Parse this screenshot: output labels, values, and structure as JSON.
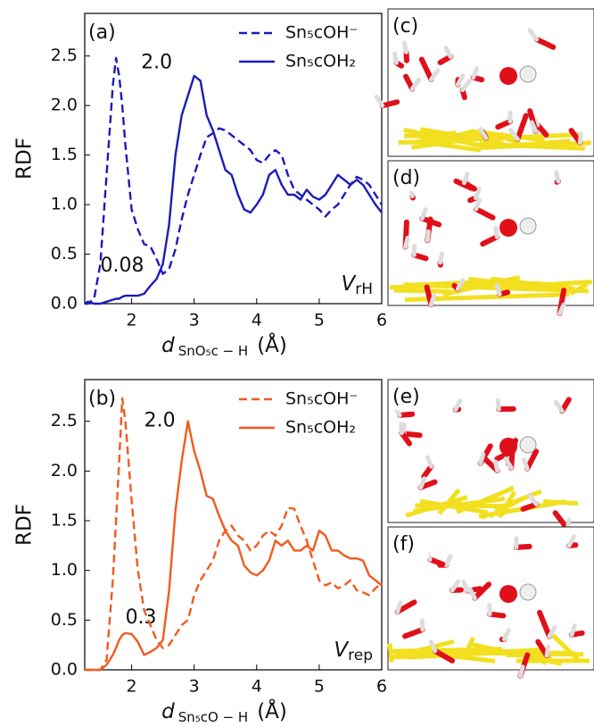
{
  "chart_data": [
    {
      "type": "line",
      "panel": "(a)",
      "ylabel": "RDF",
      "xlabel_symbol": "d",
      "xlabel_subscript": "SnO₅c − H",
      "xlabel_unit": "(Å)",
      "annotations": [
        "2.0",
        "0.08"
      ],
      "corner_label": "V",
      "corner_label_subscript": "rH",
      "legend": "upper right",
      "grid": false,
      "xlim": [
        1.25,
        6
      ],
      "xticks": [
        2,
        3,
        4,
        5,
        6
      ],
      "ylim": [
        0,
        2.93
      ],
      "yticks": [
        {
          "value": 0,
          "label": "0.0"
        },
        0.5,
        {
          "value": 1,
          "label": "1.0"
        },
        1.5,
        {
          "value": 2,
          "label": "2.0"
        },
        2.5
      ],
      "x": [
        1.25,
        1.3,
        1.4,
        1.5,
        1.6,
        1.7,
        1.75,
        1.8,
        1.85,
        1.9,
        2.0,
        2.1,
        2.2,
        2.3,
        2.4,
        2.5,
        2.6,
        2.7,
        2.8,
        2.9,
        3.0,
        3.1,
        3.2,
        3.3,
        3.4,
        3.5,
        3.6,
        3.7,
        3.8,
        3.9,
        4.0,
        4.1,
        4.2,
        4.3,
        4.4,
        4.5,
        4.6,
        4.7,
        4.8,
        4.9,
        5.0,
        5.1,
        5.2,
        5.3,
        5.4,
        5.5,
        5.6,
        5.7,
        5.8,
        5.9,
        6.0
      ],
      "series": [
        {
          "name": "Sn₅cOH⁻",
          "color": "#1c1cb8",
          "linestyle": "dashed",
          "values": [
            0,
            0,
            0.05,
            0.4,
            1.3,
            2.2,
            2.48,
            2.3,
            2.0,
            1.6,
            0.95,
            0.75,
            0.6,
            0.58,
            0.45,
            0.3,
            0.35,
            0.55,
            0.85,
            1.1,
            1.3,
            1.5,
            1.68,
            1.72,
            1.77,
            1.75,
            1.7,
            1.65,
            1.6,
            1.55,
            1.45,
            1.42,
            1.5,
            1.55,
            1.5,
            1.3,
            1.15,
            1.1,
            1.05,
            1.0,
            0.95,
            0.88,
            0.95,
            1.0,
            1.1,
            1.2,
            1.28,
            1.25,
            1.2,
            1.1,
            1.0
          ]
        },
        {
          "name": "Sn₅cOH₂",
          "color": "#1c1cb8",
          "linestyle": "solid",
          "values": [
            0,
            0.02,
            0,
            0,
            0.02,
            0.04,
            0.05,
            0.05,
            0.07,
            0.08,
            0.08,
            0.08,
            0.1,
            0.18,
            0.25,
            0.4,
            0.8,
            1.5,
            1.9,
            2.1,
            2.3,
            2.25,
            1.9,
            1.75,
            1.55,
            1.35,
            1.3,
            1.1,
            0.95,
            0.92,
            1.0,
            1.1,
            1.3,
            1.35,
            1.2,
            1.1,
            1.1,
            1.05,
            1.15,
            1.08,
            1.05,
            1.1,
            1.2,
            1.3,
            1.25,
            1.2,
            1.25,
            1.2,
            1.1,
            1.0,
            0.92
          ]
        }
      ]
    },
    {
      "type": "line",
      "panel": "(b)",
      "ylabel": "RDF",
      "xlabel_symbol": "d",
      "xlabel_subscript": "Sn₅cO − H",
      "xlabel_unit": "(Å)",
      "annotations": [
        "2.0",
        "0.3"
      ],
      "corner_label": "V",
      "corner_label_subscript": "rep",
      "legend": "upper right",
      "grid": false,
      "xlim": [
        1.25,
        6
      ],
      "xticks": [
        2,
        3,
        4,
        5,
        6
      ],
      "ylim": [
        0,
        2.92
      ],
      "yticks": [
        {
          "value": 0,
          "label": "0.0"
        },
        0.5,
        {
          "value": 1,
          "label": "1.0"
        },
        1.5,
        {
          "value": 2,
          "label": "2.0"
        },
        2.5
      ],
      "x": [
        1.25,
        1.3,
        1.4,
        1.5,
        1.6,
        1.7,
        1.75,
        1.8,
        1.85,
        1.9,
        2.0,
        2.1,
        2.2,
        2.3,
        2.4,
        2.5,
        2.6,
        2.7,
        2.8,
        2.9,
        3.0,
        3.1,
        3.2,
        3.3,
        3.4,
        3.5,
        3.6,
        3.7,
        3.8,
        3.9,
        4.0,
        4.1,
        4.2,
        4.3,
        4.4,
        4.5,
        4.6,
        4.7,
        4.8,
        4.9,
        5.0,
        5.1,
        5.2,
        5.3,
        5.4,
        5.5,
        5.6,
        5.7,
        5.8,
        5.9,
        6.0
      ],
      "series": [
        {
          "name": "Sn₅cOH⁻",
          "color": "#f25a1e",
          "linestyle": "dashed",
          "values": [
            0,
            0,
            0,
            0,
            0.1,
            0.9,
            1.5,
            2.1,
            2.73,
            2.5,
            1.7,
            1.0,
            0.6,
            0.45,
            0.3,
            0.22,
            0.25,
            0.35,
            0.45,
            0.5,
            0.75,
            0.9,
            1.0,
            1.1,
            1.3,
            1.4,
            1.45,
            1.35,
            1.3,
            1.2,
            1.25,
            1.35,
            1.4,
            1.35,
            1.45,
            1.63,
            1.62,
            1.45,
            1.3,
            1.1,
            0.9,
            0.85,
            0.88,
            0.82,
            0.85,
            0.9,
            0.8,
            0.78,
            0.75,
            0.82,
            0.88
          ]
        },
        {
          "name": "Sn₅cOH₂",
          "color": "#f25a1e",
          "linestyle": "solid",
          "values": [
            0,
            0,
            0,
            0,
            0.05,
            0.15,
            0.22,
            0.3,
            0.35,
            0.37,
            0.36,
            0.28,
            0.15,
            0.18,
            0.22,
            0.3,
            0.8,
            1.6,
            2.1,
            2.5,
            2.2,
            2.0,
            1.75,
            1.72,
            1.55,
            1.4,
            1.3,
            1.25,
            1.05,
            0.98,
            0.95,
            1.0,
            1.1,
            1.3,
            1.25,
            1.3,
            1.2,
            1.2,
            1.25,
            1.2,
            1.4,
            1.35,
            1.2,
            1.2,
            1.15,
            1.12,
            1.12,
            1.1,
            0.95,
            0.9,
            0.85
          ]
        }
      ]
    }
  ],
  "snapshots": [
    "(c)",
    "(d)",
    "(e)",
    "(f)"
  ]
}
